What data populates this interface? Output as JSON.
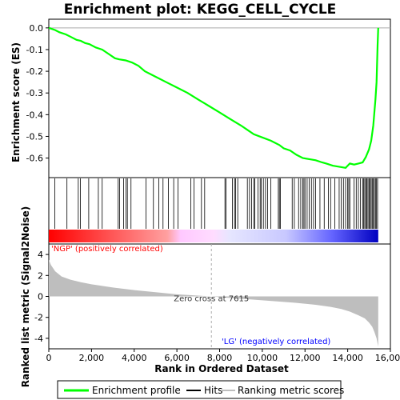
{
  "chart_data": {
    "type": "line",
    "title": "Enrichment plot: KEGG_CELL_CYCLE",
    "top_panel": {
      "ylabel": "Enrichment score (ES)",
      "ylim": [
        -0.69,
        0.04
      ],
      "yticks": [
        "0.0",
        "-0.1",
        "-0.2",
        "-0.3",
        "-0.4",
        "-0.5",
        "-0.6"
      ],
      "ytick_values": [
        0.0,
        -0.1,
        -0.2,
        -0.3,
        -0.4,
        -0.5,
        -0.6
      ],
      "series": [
        {
          "name": "Enrichment profile",
          "color": "#00ff00",
          "x": [
            0,
            300,
            500,
            800,
            1000,
            1300,
            1500,
            1700,
            1900,
            2200,
            2500,
            2800,
            3100,
            3300,
            3600,
            3900,
            4200,
            4500,
            5000,
            5500,
            6000,
            6500,
            7000,
            7500,
            8000,
            8500,
            9000,
            9300,
            9600,
            10000,
            10400,
            10800,
            11000,
            11300,
            11600,
            11900,
            12200,
            12500,
            12800,
            13000,
            13300,
            13600,
            13900,
            14000,
            14100,
            14300,
            14500,
            14700,
            14850,
            15000,
            15100,
            15200,
            15300,
            15350,
            15400,
            15430
          ],
          "y": [
            0.0,
            -0.01,
            -0.02,
            -0.03,
            -0.04,
            -0.055,
            -0.06,
            -0.07,
            -0.075,
            -0.09,
            -0.1,
            -0.12,
            -0.14,
            -0.145,
            -0.15,
            -0.16,
            -0.175,
            -0.2,
            -0.225,
            -0.25,
            -0.275,
            -0.3,
            -0.33,
            -0.36,
            -0.39,
            -0.42,
            -0.45,
            -0.47,
            -0.49,
            -0.505,
            -0.52,
            -0.54,
            -0.555,
            -0.565,
            -0.585,
            -0.6,
            -0.605,
            -0.61,
            -0.62,
            -0.625,
            -0.635,
            -0.64,
            -0.645,
            -0.635,
            -0.625,
            -0.63,
            -0.625,
            -0.62,
            -0.595,
            -0.56,
            -0.52,
            -0.45,
            -0.33,
            -0.25,
            -0.08,
            0.0
          ]
        }
      ]
    },
    "hits_panel": {
      "name": "Hits",
      "hit_ranks": [
        280,
        850,
        1380,
        1480,
        1870,
        2320,
        2500,
        3250,
        3320,
        3500,
        3620,
        3680,
        3850,
        4550,
        4900,
        5150,
        5350,
        5600,
        5850,
        6050,
        6650,
        6800,
        7150,
        7300,
        8250,
        8300,
        8600,
        8700,
        8750,
        8850,
        9300,
        9400,
        9500,
        9600,
        9650,
        9800,
        9900,
        9950,
        10050,
        10150,
        10250,
        10400,
        10750,
        10800,
        10850,
        11400,
        11500,
        11700,
        11800,
        11900,
        11950,
        12000,
        12100,
        12200,
        12300,
        12400,
        12500,
        12700,
        12900,
        13100,
        13200,
        13400,
        13600,
        13700,
        13800,
        13900,
        14000,
        14050,
        14100,
        14300,
        14400,
        14500,
        14600,
        14700,
        14750,
        14800,
        14850,
        14900,
        14950,
        15000,
        15050,
        15100,
        15150,
        15200,
        15250,
        15300,
        15350,
        15400
      ]
    },
    "metric_panel": {
      "ylabel": "Ranked list metric (Signal2Noise)",
      "ylim": [
        -5,
        5
      ],
      "yticks": [
        "4",
        "2",
        "0",
        "-2",
        "-4"
      ],
      "ytick_values": [
        4,
        2,
        0,
        -2,
        -4
      ],
      "series": [
        {
          "name": "Ranking metric scores",
          "x": [
            0,
            100,
            300,
            600,
            1000,
            1500,
            2000,
            3000,
            4000,
            5000,
            6000,
            7000,
            7615,
            8500,
            9500,
            10500,
            11500,
            12500,
            13200,
            13700,
            14100,
            14500,
            14800,
            15000,
            15150,
            15250,
            15350,
            15430
          ],
          "y": [
            3.5,
            3.0,
            2.4,
            1.9,
            1.6,
            1.35,
            1.15,
            0.85,
            0.6,
            0.4,
            0.2,
            0.08,
            0.0,
            -0.15,
            -0.3,
            -0.45,
            -0.6,
            -0.8,
            -1.0,
            -1.2,
            -1.45,
            -1.8,
            -2.1,
            -2.5,
            -2.9,
            -3.4,
            -4.0,
            -4.8
          ]
        }
      ],
      "zero_cross_label": "Zero cross at 7615",
      "zero_cross": 7615,
      "pos_label": "'NGP' (positively correlated)",
      "neg_label": "'LG' (negatively correlated)"
    },
    "xlabel": "Rank in Ordered Dataset",
    "xlim": [
      0,
      16000
    ],
    "xticks": [
      "0",
      "2,000",
      "4,000",
      "6,000",
      "8,000",
      "10,000",
      "12,000",
      "14,000",
      "16,000"
    ],
    "xtick_values": [
      0,
      2000,
      4000,
      6000,
      8000,
      10000,
      12000,
      14000,
      16000
    ],
    "total_ranks": 15430,
    "colors": {
      "profile": "#00ff00",
      "metric_fill": "#bebebe",
      "positive_label": "#ff0000",
      "negative_label": "#0000ff",
      "hits": "#000000"
    }
  },
  "legend": {
    "items": [
      {
        "label": "Enrichment profile",
        "color": "#00ff00"
      },
      {
        "label": "Hits",
        "color": "#000000"
      },
      {
        "label": "Ranking metric scores",
        "color": "#bebebe"
      }
    ]
  }
}
